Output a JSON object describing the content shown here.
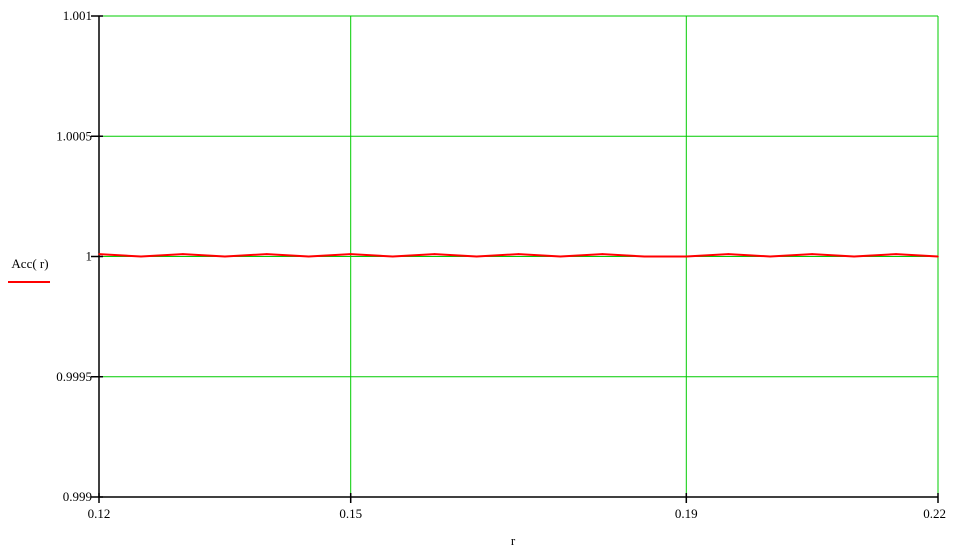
{
  "chart_data": {
    "type": "line",
    "title": "",
    "xlabel": "r",
    "ylabel": "Acc( r)",
    "xlim": [
      0.12,
      0.22
    ],
    "ylim": [
      0.999,
      1.001
    ],
    "x_ticks": [
      0.12,
      0.15,
      0.19,
      0.22
    ],
    "x_tick_labels": [
      "0.12",
      "0.15",
      "0.19",
      "0.22"
    ],
    "y_ticks": [
      0.999,
      0.9995,
      1,
      1.0005,
      1.001
    ],
    "y_tick_labels": [
      "0.999",
      "0.9995",
      "1",
      "1.0005",
      "1.001"
    ],
    "grid": true,
    "series": [
      {
        "x": [
          0.12,
          0.125,
          0.13,
          0.135,
          0.14,
          0.145,
          0.15,
          0.155,
          0.16,
          0.165,
          0.17,
          0.175,
          0.18,
          0.185,
          0.19,
          0.195,
          0.2,
          0.205,
          0.21,
          0.215,
          0.22
        ],
        "values": [
          1.00001,
          1.0,
          1.00001,
          1.0,
          1.00001,
          1.0,
          1.00001,
          1.0,
          1.00001,
          1.0,
          1.00001,
          1.0,
          1.00001,
          1.0,
          1.0,
          1.00001,
          1.0,
          1.00001,
          1.0,
          1.00001,
          1.0
        ]
      }
    ],
    "colors": {
      "series": "#ff0000",
      "grid": "#00cc00",
      "axis": "#000000"
    }
  }
}
